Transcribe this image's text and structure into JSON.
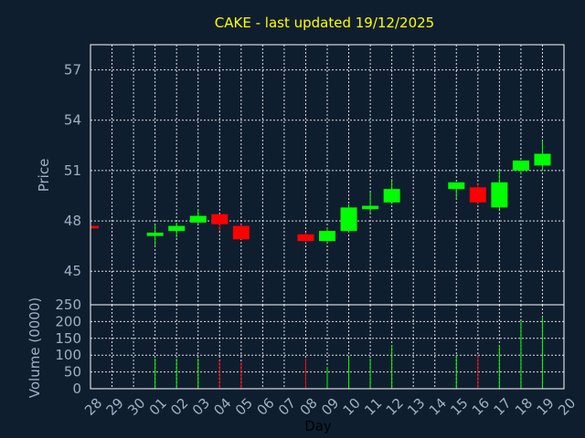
{
  "chart_data": {
    "type": "candlestick",
    "title": "CAKE - last updated 19/12/2025",
    "xlabel": "Day",
    "price_panel": {
      "ylabel": "Price",
      "ylim": [
        43,
        58.5
      ],
      "yticks": [
        45,
        48,
        51,
        54,
        57
      ]
    },
    "volume_panel": {
      "ylabel": "Volume (0000)",
      "ylim": [
        0,
        250
      ],
      "yticks": [
        0,
        50,
        100,
        150,
        200,
        250
      ]
    },
    "categories": [
      "28",
      "29",
      "30",
      "01",
      "02",
      "03",
      "04",
      "05",
      "06",
      "07",
      "08",
      "09",
      "10",
      "11",
      "12",
      "13",
      "14",
      "15",
      "16",
      "17",
      "18",
      "19",
      "20"
    ],
    "candles": [
      {
        "day": "28",
        "open": 47.7,
        "high": 47.7,
        "low": 47.5,
        "close": 47.55,
        "volume": 0
      },
      {
        "day": "01",
        "open": 47.1,
        "high": 47.8,
        "low": 46.5,
        "close": 47.3,
        "volume": 90
      },
      {
        "day": "02",
        "open": 47.4,
        "high": 47.9,
        "low": 47.0,
        "close": 47.7,
        "volume": 90
      },
      {
        "day": "03",
        "open": 47.9,
        "high": 48.7,
        "low": 47.8,
        "close": 48.3,
        "volume": 90
      },
      {
        "day": "04",
        "open": 48.4,
        "high": 48.4,
        "low": 47.4,
        "close": 47.8,
        "volume": 85
      },
      {
        "day": "05",
        "open": 47.7,
        "high": 47.8,
        "low": 46.9,
        "close": 46.9,
        "volume": 80
      },
      {
        "day": "08",
        "open": 47.2,
        "high": 47.3,
        "low": 46.7,
        "close": 46.8,
        "volume": 90
      },
      {
        "day": "09",
        "open": 46.8,
        "high": 47.6,
        "low": 46.7,
        "close": 47.4,
        "volume": 65
      },
      {
        "day": "10",
        "open": 47.4,
        "high": 49.0,
        "low": 47.3,
        "close": 48.8,
        "volume": 95
      },
      {
        "day": "11",
        "open": 48.7,
        "high": 49.7,
        "low": 48.5,
        "close": 48.9,
        "volume": 90
      },
      {
        "day": "12",
        "open": 49.1,
        "high": 50.5,
        "low": 49.0,
        "close": 49.9,
        "volume": 130
      },
      {
        "day": "15",
        "open": 49.9,
        "high": 50.3,
        "low": 49.3,
        "close": 50.3,
        "volume": 100
      },
      {
        "day": "16",
        "open": 50.0,
        "high": 50.2,
        "low": 49.0,
        "close": 49.1,
        "volume": 100
      },
      {
        "day": "17",
        "open": 48.8,
        "high": 51.0,
        "low": 48.7,
        "close": 50.3,
        "volume": 130
      },
      {
        "day": "18",
        "open": 51.0,
        "high": 51.6,
        "low": 50.8,
        "close": 51.6,
        "volume": 200
      },
      {
        "day": "19",
        "open": 51.3,
        "high": 52.8,
        "low": 51.0,
        "close": 52.0,
        "volume": 215
      }
    ],
    "grid": true,
    "colors": {
      "background": "#0f1e2f",
      "plot_border": "#ffffff",
      "grid": "#ffffff",
      "up": "#00ff00",
      "down": "#ff0000",
      "title": "#ffff00",
      "text": "#9db0c4",
      "xlabel": "#000000"
    }
  }
}
